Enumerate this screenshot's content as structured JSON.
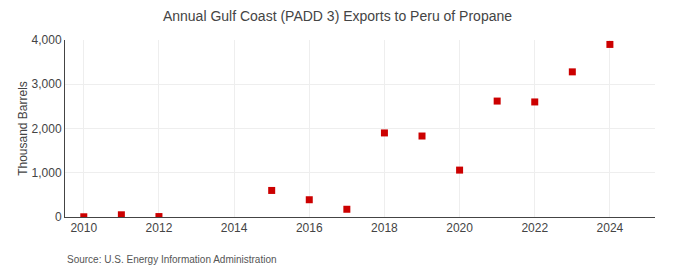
{
  "chart_data": {
    "type": "scatter",
    "title": "Annual Gulf Coast (PADD 3) Exports to Peru of Propane",
    "ylabel": "Thousand Barrels",
    "annotations": [
      "Source: U.S. Energy Information Administration"
    ],
    "x": [
      2010,
      2011,
      2012,
      2015,
      2016,
      2017,
      2018,
      2019,
      2020,
      2021,
      2022,
      2023,
      2024
    ],
    "values": [
      5,
      50,
      10,
      600,
      390,
      175,
      1900,
      1830,
      1060,
      2620,
      2600,
      3280,
      3900
    ],
    "color": "#cc0000",
    "marker": "square",
    "xlim": [
      2009.5,
      2025.2
    ],
    "xticks": [
      2010,
      2012,
      2014,
      2016,
      2018,
      2020,
      2022,
      2024
    ],
    "ylim": [
      0,
      4000
    ],
    "yticks": [
      0,
      {
        "value": 1000,
        "label": "1,000"
      },
      {
        "value": 2000,
        "label": "2,000"
      },
      {
        "value": 3000,
        "label": "3,000"
      },
      {
        "value": 4000,
        "label": "4,000"
      }
    ],
    "grid": true
  }
}
